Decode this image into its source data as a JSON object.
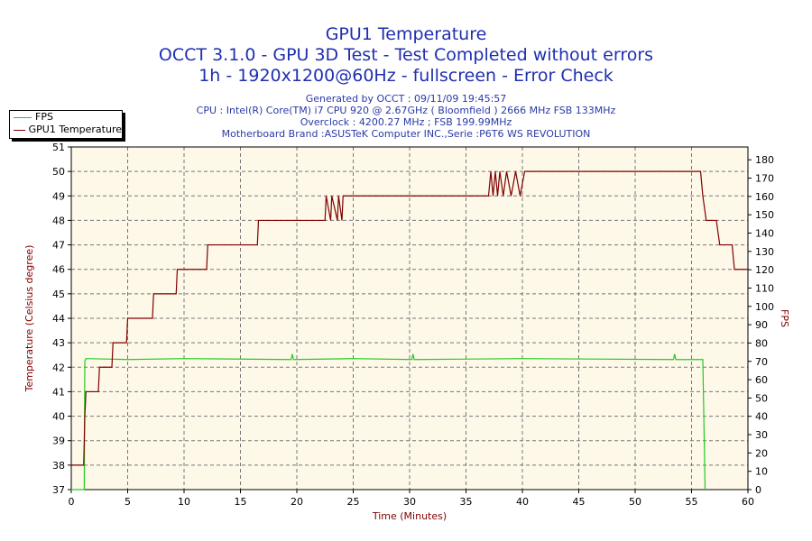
{
  "chart_data": {
    "type": "line",
    "title": "GPU1 Temperature",
    "subtitle_lines": [
      "OCCT 3.1.0 - GPU 3D Test - Test Completed without errors",
      "1h - 1920x1200@60Hz - fullscreen - Error Check"
    ],
    "info_lines": [
      "Generated by OCCT : 09/11/09 19:45:57",
      "CPU : Intel(R) Core(TM) i7 CPU 920 @ 2.67GHz ( Bloomfield ) 2666 MHz FSB 133MHz",
      "Overclock : 4200.27 MHz ; FSB 199.99MHz",
      "Motherboard Brand :ASUSTeK Computer INC.,Serie :P6T6 WS REVOLUTION"
    ],
    "xlabel": "Time (Minutes)",
    "ylabel": "Temperature (Celsius degree)",
    "y2label": "FPS",
    "xlim": [
      0,
      60
    ],
    "ylim": [
      37,
      51
    ],
    "y2lim": [
      0,
      187
    ],
    "xticks": [
      0,
      5,
      10,
      15,
      20,
      25,
      30,
      35,
      40,
      45,
      50,
      55,
      60
    ],
    "yticks": [
      37,
      38,
      39,
      40,
      41,
      42,
      43,
      44,
      45,
      46,
      47,
      48,
      49,
      50,
      51
    ],
    "y2ticks": [
      0,
      10,
      20,
      30,
      40,
      50,
      60,
      70,
      80,
      90,
      100,
      110,
      120,
      130,
      140,
      150,
      160,
      170,
      180
    ],
    "grid": true,
    "legend_position": "top-left",
    "colors": {
      "fps": "#22cc22",
      "temp": "#800000",
      "plot_bg": "#fdf8e8",
      "text": "#1f2fb0"
    },
    "series": [
      {
        "name": "FPS",
        "axis": "right",
        "x": [
          0,
          1.15,
          1.2,
          1.3,
          5,
          10,
          19.5,
          19.6,
          19.7,
          25,
          30.2,
          30.3,
          30.4,
          40,
          53.4,
          53.5,
          53.6,
          55.9,
          56,
          56.2
        ],
        "y": [
          0,
          0,
          70,
          71.5,
          71,
          71.5,
          71,
          74,
          71,
          71.5,
          71,
          74,
          71,
          71.5,
          71,
          74,
          71,
          71,
          71,
          0
        ]
      },
      {
        "name": "GPU1 Temperature",
        "axis": "left",
        "x": [
          0,
          1.1,
          1.2,
          1.3,
          1.4,
          2.4,
          2.5,
          3.6,
          3.7,
          4.9,
          5,
          7.2,
          7.3,
          9.3,
          9.4,
          12,
          12.1,
          16.5,
          16.6,
          22.5,
          22.6,
          23,
          23.1,
          23.6,
          23.7,
          24,
          24.1,
          37,
          37.2,
          37.4,
          37.6,
          37.8,
          38,
          38.3,
          38.6,
          39,
          39.4,
          39.8,
          40.2,
          40.4,
          55.8,
          56,
          56.3,
          56.6,
          57.2,
          57.5,
          58.6,
          58.8,
          60
        ],
        "y": [
          38,
          38,
          40,
          41,
          41,
          41,
          42,
          42,
          43,
          43,
          44,
          44,
          45,
          45,
          46,
          46,
          47,
          47,
          48,
          48,
          49,
          48,
          49,
          48,
          49,
          48,
          49,
          49,
          50,
          49,
          50,
          49,
          50,
          49,
          50,
          49,
          50,
          49,
          50,
          50,
          50,
          49,
          48,
          48,
          48,
          47,
          47,
          46,
          46
        ]
      }
    ]
  }
}
